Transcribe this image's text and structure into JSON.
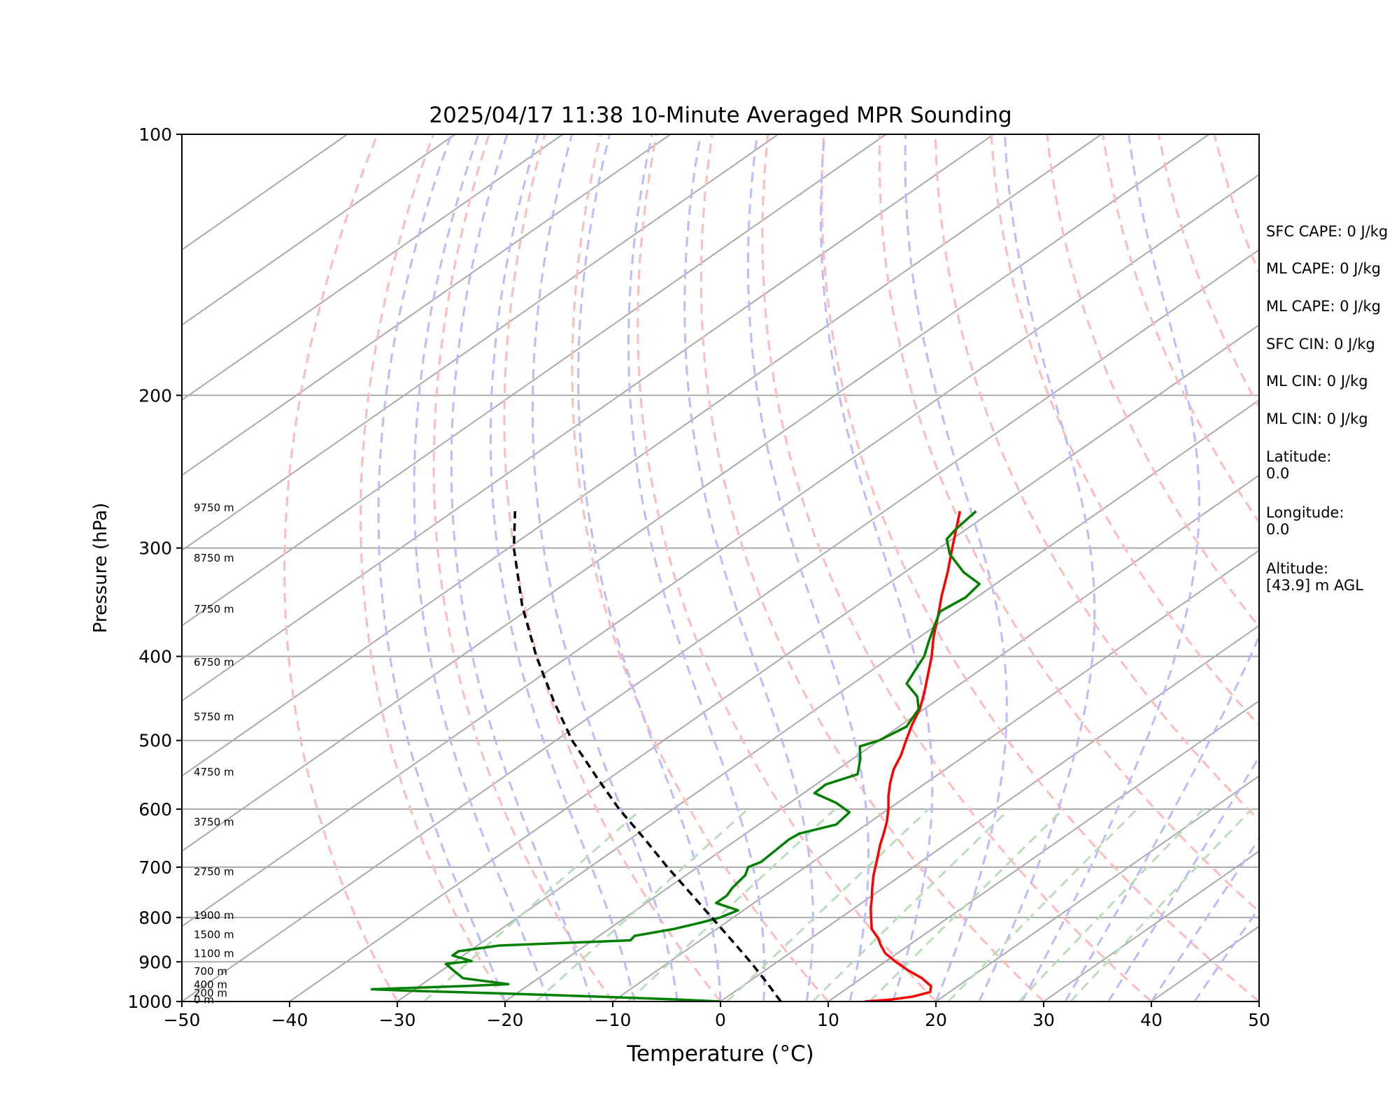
{
  "chart_data": {
    "type": "skew-t",
    "title": "2025/04/17 11:38 10-Minute Averaged MPR Sounding",
    "xlabel": "Temperature (°C)",
    "ylabel": "Pressure (hPa)",
    "xlim": [
      -50,
      50
    ],
    "ylim": [
      1000,
      100
    ],
    "x_ticks": [
      "−50",
      "−40",
      "−30",
      "−20",
      "−10",
      "0",
      "10",
      "20",
      "30",
      "40",
      "50"
    ],
    "y_ticks": [
      "100",
      "200",
      "300",
      "400",
      "500",
      "600",
      "700",
      "800",
      "900",
      "1000"
    ],
    "height_labels": [
      {
        "text": "9750 m",
        "p": 272
      },
      {
        "text": "8750 m",
        "p": 311
      },
      {
        "text": "7750 m",
        "p": 356
      },
      {
        "text": "6750 m",
        "p": 410
      },
      {
        "text": "5750 m",
        "p": 474
      },
      {
        "text": "4750 m",
        "p": 549
      },
      {
        "text": "3750 m",
        "p": 627
      },
      {
        "text": "2750 m",
        "p": 715
      },
      {
        "text": "1900 m",
        "p": 803
      },
      {
        "text": "1500 m",
        "p": 845
      },
      {
        "text": "1100 m",
        "p": 889
      },
      {
        "text": "700 m",
        "p": 932
      },
      {
        "text": "400 m",
        "p": 965
      },
      {
        "text": "200 m",
        "p": 987
      },
      {
        "text": "0 m",
        "p": 1005
      }
    ],
    "series": [
      {
        "type": "temperature",
        "points": [
          [
            1000,
            13.4
          ],
          [
            995,
            15.5
          ],
          [
            987,
            17.2
          ],
          [
            975,
            18.2
          ],
          [
            960,
            17.5
          ],
          [
            940,
            15.6
          ],
          [
            920,
            13.2
          ],
          [
            900,
            11.0
          ],
          [
            880,
            8.9
          ],
          [
            860,
            7.3
          ],
          [
            845,
            6.2
          ],
          [
            825,
            4.4
          ],
          [
            800,
            2.8
          ],
          [
            780,
            1.5
          ],
          [
            760,
            0.3
          ],
          [
            740,
            -1.0
          ],
          [
            715,
            -2.6
          ],
          [
            690,
            -4.1
          ],
          [
            660,
            -6.0
          ],
          [
            640,
            -7.2
          ],
          [
            620,
            -8.5
          ],
          [
            600,
            -10.0
          ],
          [
            580,
            -11.7
          ],
          [
            560,
            -13.3
          ],
          [
            540,
            -14.8
          ],
          [
            520,
            -16.0
          ],
          [
            500,
            -17.5
          ],
          [
            480,
            -19.0
          ],
          [
            460,
            -20.4
          ],
          [
            440,
            -22.2
          ],
          [
            420,
            -24.2
          ],
          [
            400,
            -26.3
          ],
          [
            380,
            -28.7
          ],
          [
            360,
            -31.0
          ],
          [
            340,
            -33.5
          ],
          [
            320,
            -36.0
          ],
          [
            300,
            -38.8
          ],
          [
            285,
            -41.0
          ],
          [
            272,
            -43.0
          ]
        ]
      },
      {
        "type": "dewpoint",
        "points": [
          [
            1000,
            0.0
          ],
          [
            995,
            -4.0
          ],
          [
            990,
            -9.0
          ],
          [
            980,
            -20.0
          ],
          [
            972,
            -30.0
          ],
          [
            968,
            -34.0
          ],
          [
            960,
            -26.0
          ],
          [
            955,
            -22.0
          ],
          [
            940,
            -27.0
          ],
          [
            920,
            -29.0
          ],
          [
            905,
            -30.5
          ],
          [
            898,
            -28.5
          ],
          [
            885,
            -31.0
          ],
          [
            875,
            -31.0
          ],
          [
            862,
            -28.0
          ],
          [
            850,
            -16.5
          ],
          [
            840,
            -16.7
          ],
          [
            825,
            -14.0
          ],
          [
            810,
            -12.2
          ],
          [
            800,
            -11.2
          ],
          [
            785,
            -10.5
          ],
          [
            770,
            -13.5
          ],
          [
            755,
            -13.5
          ],
          [
            740,
            -14.0
          ],
          [
            715,
            -14.5
          ],
          [
            700,
            -15.3
          ],
          [
            690,
            -14.8
          ],
          [
            670,
            -15.0
          ],
          [
            650,
            -15.2
          ],
          [
            640,
            -15.0
          ],
          [
            625,
            -12.8
          ],
          [
            605,
            -13.2
          ],
          [
            590,
            -15.7
          ],
          [
            575,
            -19.0
          ],
          [
            562,
            -19.1
          ],
          [
            547,
            -17.5
          ],
          [
            525,
            -19.3
          ],
          [
            508,
            -21.0
          ],
          [
            500,
            -20.0
          ],
          [
            482,
            -19.3
          ],
          [
            460,
            -20.5
          ],
          [
            445,
            -22.3
          ],
          [
            430,
            -25.0
          ],
          [
            415,
            -26.0
          ],
          [
            400,
            -27.0
          ],
          [
            385,
            -28.5
          ],
          [
            370,
            -30.0
          ],
          [
            355,
            -31.5
          ],
          [
            342,
            -31.0
          ],
          [
            330,
            -31.5
          ],
          [
            320,
            -34.5
          ],
          [
            305,
            -38.2
          ],
          [
            293,
            -40.5
          ],
          [
            285,
            -41.0
          ],
          [
            272,
            -41.5
          ]
        ]
      },
      {
        "type": "parcel",
        "points": [
          [
            1000,
            5.6
          ],
          [
            950,
            1.7
          ],
          [
            900,
            -2.5
          ],
          [
            850,
            -7.1
          ],
          [
            800,
            -12.0
          ],
          [
            750,
            -17.2
          ],
          [
            700,
            -22.8
          ],
          [
            650,
            -28.6
          ],
          [
            600,
            -35.0
          ],
          [
            550,
            -41.5
          ],
          [
            500,
            -48.5
          ],
          [
            450,
            -55.5
          ],
          [
            400,
            -63.0
          ],
          [
            350,
            -71.0
          ],
          [
            300,
            -79.5
          ],
          [
            272,
            -84.3
          ]
        ]
      }
    ],
    "colors": {
      "temperature": "#ff0000",
      "dewpoint": "#008000",
      "parcel": "#000000",
      "isotherm": "#aaaaaa",
      "isobar": "#aaaaaa",
      "dry_adiabat": "#ffbbbb",
      "moist_adiabat": "#bbbbff",
      "mixing_ratio": "#bbddbb"
    }
  },
  "side_info": {
    "sfc_cape": "SFC CAPE: 0 J/kg",
    "ml_cape_1": "ML CAPE: 0 J/kg",
    "ml_cape_2": "ML CAPE: 0 J/kg",
    "sfc_cin": "SFC CIN: 0 J/kg",
    "ml_cin_1": "ML CIN: 0 J/kg",
    "ml_cin_2": "ML CIN: 0 J/kg",
    "latitude_label": "Latitude:",
    "latitude_value": "0.0",
    "longitude_label": "Longitude:",
    "longitude_value": "0.0",
    "altitude_label": "Altitude:",
    "altitude_value": "[43.9] m AGL"
  }
}
